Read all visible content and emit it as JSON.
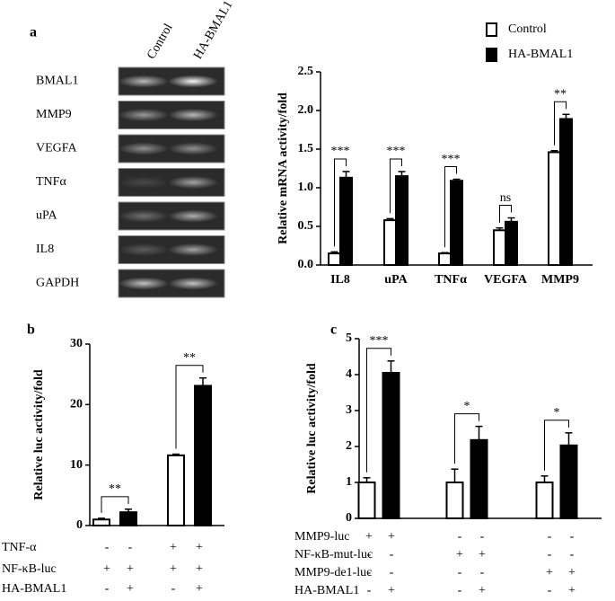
{
  "panels": [
    "a",
    "b",
    "c"
  ],
  "gel": {
    "lanes": [
      "Control",
      "HA-BMAL1"
    ],
    "rows": [
      "BMAL1",
      "MMP9",
      "VEGFA",
      "TNFα",
      "uPA",
      "IL8",
      "GAPDH"
    ]
  },
  "chart_data": [
    {
      "type": "bar",
      "y_label": "Relative mRNA activity/fold",
      "categories": [
        "IL8",
        "uPA",
        "TNFα",
        "VEGFA",
        "MMP9"
      ],
      "series": [
        {
          "name": "Control",
          "color": "#ffffff",
          "values": [
            0.15,
            0.58,
            0.15,
            0.45,
            1.46
          ],
          "errors": [
            0.02,
            0.02,
            0.01,
            0.03,
            0.02
          ]
        },
        {
          "name": "HA-BMAL1",
          "color": "#000000",
          "values": [
            1.13,
            1.15,
            1.09,
            0.56,
            1.89
          ],
          "errors": [
            0.08,
            0.06,
            0.02,
            0.05,
            0.06
          ]
        }
      ],
      "annotations": [
        "***",
        "***",
        "***",
        "ns",
        "**"
      ],
      "ylim": [
        0,
        2.5
      ],
      "yticks": [
        {
          "value": 0,
          "label": "0.0"
        },
        0.5,
        {
          "value": 1,
          "label": "1.0"
        },
        1.5,
        {
          "value": 2,
          "label": "2.0"
        },
        2.5
      ],
      "legend": "top-right"
    },
    {
      "type": "bar",
      "y_label": "Relative luc activity/fold",
      "categories": [
        null,
        null
      ],
      "series": [
        {
          "color": "#ffffff",
          "values": [
            1.0,
            11.6
          ],
          "errors": [
            0.2,
            0.2
          ]
        },
        {
          "color": "#000000",
          "values": [
            2.2,
            23.1
          ],
          "errors": [
            0.5,
            1.3
          ]
        }
      ],
      "annotations": [
        "**",
        "**"
      ],
      "ylim": [
        0,
        30
      ],
      "yticks": [
        0,
        10,
        20,
        30
      ],
      "conditions": [
        {
          "label": "TNF-α",
          "signs": [
            "-",
            "-",
            "+",
            "+"
          ]
        },
        {
          "label": "NF-κB-luc",
          "signs": [
            "+",
            "+",
            "+",
            "+"
          ]
        },
        {
          "label": "HA-BMAL1",
          "signs": [
            "-",
            "+",
            "-",
            "+"
          ]
        }
      ]
    },
    {
      "type": "bar",
      "y_label": "Relative luc activity/fold",
      "categories": [
        null,
        null,
        null
      ],
      "series": [
        {
          "color": "#ffffff",
          "values": [
            1.0,
            1.0,
            1.0
          ],
          "errors": [
            0.13,
            0.37,
            0.18
          ]
        },
        {
          "color": "#000000",
          "values": [
            4.05,
            2.18,
            2.03
          ],
          "errors": [
            0.33,
            0.38,
            0.35
          ]
        }
      ],
      "annotations": [
        "***",
        "*",
        "*"
      ],
      "ylim": [
        0,
        5
      ],
      "yticks": [
        0,
        1,
        2,
        3,
        4,
        5
      ],
      "conditions": [
        {
          "label": "MMP9-luc",
          "signs": [
            "+",
            "+",
            "-",
            "-",
            "-",
            "-"
          ]
        },
        {
          "label": "NF-κB-mut-luc",
          "signs": [
            "-",
            "-",
            "+",
            "+",
            "-",
            "-"
          ]
        },
        {
          "label": "MMP9-de1-luc",
          "signs": [
            "-",
            "-",
            "-",
            "-",
            "+",
            "+"
          ]
        },
        {
          "label": "HA-BMAL1",
          "signs": [
            "-",
            "+",
            "-",
            "+",
            "-",
            "+"
          ]
        }
      ]
    }
  ]
}
